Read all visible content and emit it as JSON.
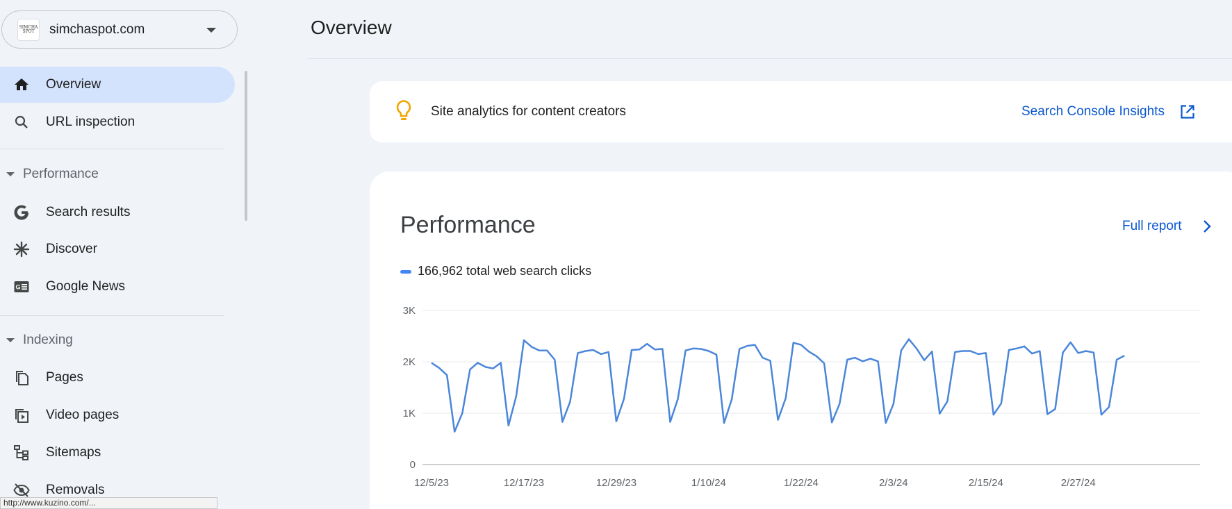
{
  "property": {
    "name": "simchaspot.com",
    "favicon": "SIMCHA SPOT"
  },
  "sidebar": {
    "overview": "Overview",
    "url_inspection": "URL inspection",
    "performance_section": "Performance",
    "search_results": "Search results",
    "discover": "Discover",
    "google_news": "Google News",
    "indexing_section": "Indexing",
    "pages": "Pages",
    "video_pages": "Video pages",
    "sitemaps": "Sitemaps",
    "removals": "Removals"
  },
  "status_bar": {
    "url": "http://www.kuzino.com/..."
  },
  "main": {
    "title": "Overview",
    "insights": {
      "text": "Site analytics for content creators",
      "link": "Search Console Insights"
    },
    "performance": {
      "title": "Performance",
      "full_report": "Full report",
      "legend": "166,962 total web search clicks"
    }
  },
  "colors": {
    "accent": "#0b57d0",
    "active_nav": "#d3e3fd",
    "series": "#4a86d9",
    "bulb": "#f0a500"
  },
  "icons": [
    "home-icon",
    "search-icon",
    "google-g-icon",
    "asterisk-icon",
    "news-icon",
    "pages-icon",
    "video-pages-icon",
    "sitemaps-icon",
    "removals-icon",
    "lightbulb-icon",
    "open-external-icon",
    "chevron-right-icon"
  ],
  "chart_data": {
    "type": "line",
    "series": [
      {
        "values": [
          1980,
          1880,
          1740,
          640,
          1000,
          1850,
          1980,
          1900,
          1870,
          1980,
          760,
          1330,
          2420,
          2290,
          2220,
          2220,
          2040,
          830,
          1220,
          2170,
          2210,
          2230,
          2150,
          2190,
          840,
          1280,
          2230,
          2240,
          2350,
          2240,
          2250,
          830,
          1280,
          2220,
          2260,
          2250,
          2210,
          2140,
          810,
          1270,
          2250,
          2310,
          2330,
          2080,
          2020,
          870,
          1290,
          2370,
          2330,
          2200,
          2110,
          1970,
          820,
          1180,
          2040,
          2080,
          2010,
          2060,
          2010,
          810,
          1180,
          2220,
          2440,
          2260,
          2030,
          2200,
          990,
          1230,
          2190,
          2210,
          2210,
          2150,
          2170,
          970,
          1190,
          2230,
          2260,
          2300,
          2160,
          2210,
          980,
          1080,
          2180,
          2380,
          2170,
          2210,
          2180,
          970,
          1120,
          2040,
          2120
        ]
      }
    ],
    "x_tick_labels": [
      "12/5/23",
      "12/17/23",
      "12/29/23",
      "1/10/24",
      "1/22/24",
      "2/3/24",
      "2/15/24",
      "2/27/24"
    ],
    "y_tick_labels": [
      "0",
      "1K",
      "2K",
      "3K"
    ],
    "ylim": [
      0,
      3000
    ],
    "grid": true
  }
}
